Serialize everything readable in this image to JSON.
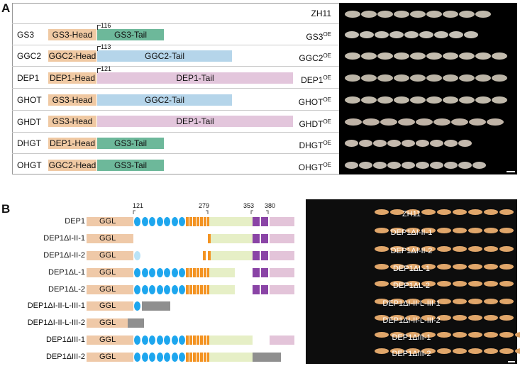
{
  "panel_a": {
    "letter": "A",
    "rows": [
      {
        "left": "",
        "oe": "ZH11",
        "sup": "",
        "n": 9,
        "w": 22,
        "color": "#bfb8ab"
      },
      {
        "left": "GS3",
        "oe": "GS3",
        "sup": "OE",
        "n": 9,
        "w": 20,
        "color": "#c5c0b6"
      },
      {
        "left": "GGC2",
        "oe": "GGC2",
        "sup": "OE",
        "n": 10,
        "w": 22,
        "color": "#c3bcae"
      },
      {
        "left": "DEP1",
        "oe": "DEP1",
        "sup": "OE",
        "n": 10,
        "w": 22,
        "color": "#bbb4a6"
      },
      {
        "left": "GHOT",
        "oe": "GHOT",
        "sup": "OE",
        "n": 10,
        "w": 22,
        "color": "#c0b9ab"
      },
      {
        "left": "GHDT",
        "oe": "GHDT",
        "sup": "OE",
        "n": 9,
        "w": 24,
        "color": "#bfb3a6"
      },
      {
        "left": "DHGT",
        "oe": "DHGT",
        "sup": "OE",
        "n": 9,
        "w": 19,
        "color": "#c4b9ad"
      },
      {
        "left": "OHGT",
        "oe": "OHGT",
        "sup": "OE",
        "n": 10,
        "w": 19,
        "color": "#c1bab0"
      }
    ],
    "heads": {
      "gs3": "GS3-Head",
      "ggc2": "GGC2-Head",
      "dep1": "DEP1-Head"
    },
    "tails": {
      "gs3": "GS3-Tail",
      "ggc2": "GGC2-Tail",
      "dep1": "DEP1-Tail"
    },
    "positions": {
      "gs3": "116",
      "ggc2": "113",
      "dep1": "121"
    }
  },
  "panel_b": {
    "letter": "B",
    "positions": [
      "121",
      "279",
      "353",
      "380"
    ],
    "domain_label": "GGL",
    "constructs": [
      "DEP1",
      "DEP1ΔI-II-1",
      "DEP1ΔI-II-2",
      "DEP1ΔL-1",
      "DEP1ΔL-2",
      "DEP1ΔI-II-L-III-1",
      "DEP1ΔI-II-L-III-2",
      "DEP1ΔIII-1",
      "DEP1ΔIII-2"
    ],
    "photo_labels": [
      "ZH11",
      "DEP1ΔI-II-1",
      "DEP1ΔI-II-2",
      "DEP1ΔL-1",
      "DEP1ΔL-2",
      "DEP1ΔI-II-L-III-1",
      "DEP1ΔI-II-L-III-2",
      "DEP1ΔIII-1",
      "DEP1ΔIII-2"
    ],
    "seed_counts": [
      9,
      9,
      9,
      9,
      9,
      9,
      9,
      10,
      10
    ],
    "seed_color": "#e0a66a"
  }
}
